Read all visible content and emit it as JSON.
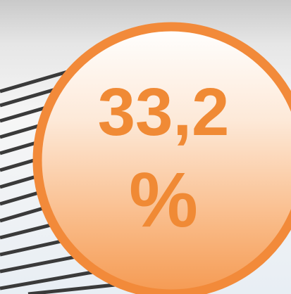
{
  "badge": {
    "value": "33,2",
    "unit": "%"
  }
}
